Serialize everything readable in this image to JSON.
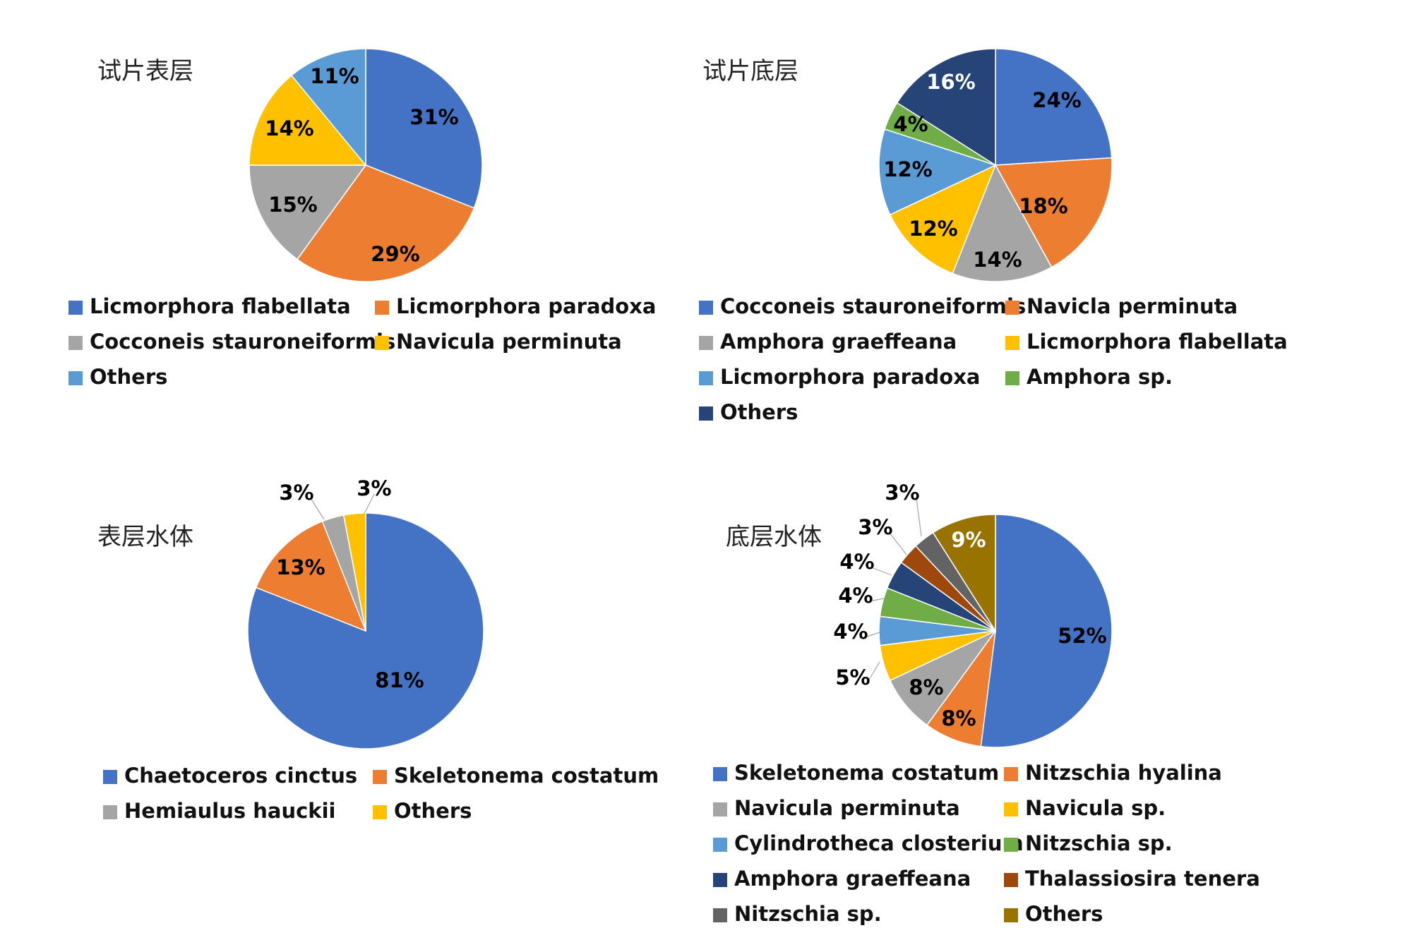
{
  "chart_data": [
    {
      "type": "pie",
      "title": "试片表层",
      "slices": [
        {
          "name": "Licmorphora flabellata",
          "value": 31,
          "label": "31%",
          "color": "#4472C4"
        },
        {
          "name": "Licmorphora paradoxa",
          "value": 29,
          "label": "29%",
          "color": "#ED7D31"
        },
        {
          "name": "Cocconeis stauroneiformis",
          "value": 15,
          "label": "15%",
          "color": "#A5A5A5"
        },
        {
          "name": "Navicula perminuta",
          "value": 14,
          "label": "14%",
          "color": "#FFC000"
        },
        {
          "name": "Others",
          "value": 11,
          "label": "11%",
          "color": "#5B9BD5"
        }
      ]
    },
    {
      "type": "pie",
      "title": "试片底层",
      "slices": [
        {
          "name": "Cocconeis stauroneiformis",
          "value": 24,
          "label": "24%",
          "color": "#4472C4"
        },
        {
          "name": "Navicla perminuta",
          "value": 18,
          "label": "18%",
          "color": "#ED7D31"
        },
        {
          "name": "Amphora graeffeana",
          "value": 14,
          "label": "14%",
          "color": "#A5A5A5"
        },
        {
          "name": "Licmorphora flabellata",
          "value": 12,
          "label": "12%",
          "color": "#FFC000"
        },
        {
          "name": "Licmorphora paradoxa",
          "value": 12,
          "label": "12%",
          "color": "#5B9BD5"
        },
        {
          "name": "Amphora sp.",
          "value": 4,
          "label": "4%",
          "color": "#70AD47"
        },
        {
          "name": "Others",
          "value": 16,
          "label": "16%",
          "color": "#264478"
        }
      ]
    },
    {
      "type": "pie",
      "title": "表层水体",
      "slices": [
        {
          "name": "Chaetoceros cinctus",
          "value": 81,
          "label": "81%",
          "color": "#4472C4"
        },
        {
          "name": "Skeletonema costatum",
          "value": 13,
          "label": "13%",
          "color": "#ED7D31"
        },
        {
          "name": "Hemiaulus hauckii",
          "value": 3,
          "label": "3%",
          "color": "#A5A5A5"
        },
        {
          "name": "Others",
          "value": 3,
          "label": "3%",
          "color": "#FFC000"
        }
      ]
    },
    {
      "type": "pie",
      "title": "底层水体",
      "slices": [
        {
          "name": "Skeletonema costatum",
          "value": 52,
          "label": "52%",
          "color": "#4472C4"
        },
        {
          "name": "Nitzschia hyalina",
          "value": 8,
          "label": "8%",
          "color": "#ED7D31"
        },
        {
          "name": "Navicula perminuta",
          "value": 8,
          "label": "8%",
          "color": "#A5A5A5"
        },
        {
          "name": "Navicula sp.",
          "value": 5,
          "label": "5%",
          "color": "#FFC000"
        },
        {
          "name": "Cylindrotheca closterium",
          "value": 4,
          "label": "4%",
          "color": "#5B9BD5"
        },
        {
          "name": "Nitzschia sp.",
          "value": 4,
          "label": "4%",
          "color": "#70AD47"
        },
        {
          "name": "Amphora graeffeana",
          "value": 4,
          "label": "4%",
          "color": "#264478"
        },
        {
          "name": "Thalassiosira tenera",
          "value": 3,
          "label": "3%",
          "color": "#9E480E"
        },
        {
          "name": "Nitzschia sp.",
          "value": 3,
          "label": "3%",
          "color": "#636363"
        },
        {
          "name": "Others",
          "value": 9,
          "label": "9%",
          "color": "#997300"
        }
      ]
    }
  ]
}
